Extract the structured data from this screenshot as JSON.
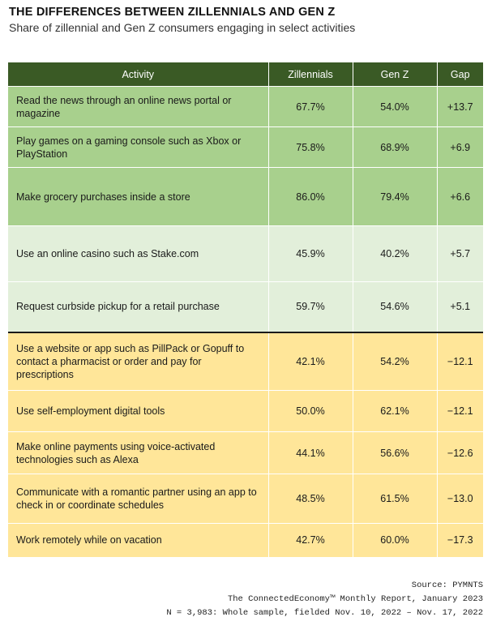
{
  "header": {
    "title": "THE DIFFERENCES BETWEEN ZILLENNIALS AND GEN Z",
    "subtitle": "Share of zillennial and Gen Z consumers engaging in select activities"
  },
  "chart_data": {
    "type": "table",
    "columns": [
      "Activity",
      "Zillennials",
      "Gen Z",
      "Gap"
    ],
    "rows": [
      {
        "activity": "Read the news through an online news portal or magazine",
        "zillennials": "67.7%",
        "genz": "54.0%",
        "gap": "+13.7",
        "group": "dark"
      },
      {
        "activity": "Play games on a gaming console such as Xbox or PlayStation",
        "zillennials": "75.8%",
        "genz": "68.9%",
        "gap": "+6.9",
        "group": "dark"
      },
      {
        "activity": "Make grocery purchases inside a store",
        "zillennials": "86.0%",
        "genz": "79.4%",
        "gap": "+6.6",
        "group": "dark"
      },
      {
        "activity": "Use an online casino such as Stake.com",
        "zillennials": "45.9%",
        "genz": "40.2%",
        "gap": "+5.7",
        "group": "light"
      },
      {
        "activity": "Request curbside pickup for a retail purchase",
        "zillennials": "59.7%",
        "genz": "54.6%",
        "gap": "+5.1",
        "group": "light"
      },
      {
        "activity": "Use a website or app such as PillPack or Gopuff to contact a pharmacist or order and pay for prescriptions",
        "zillennials": "42.1%",
        "genz": "54.2%",
        "gap": "−12.1",
        "group": "yellow"
      },
      {
        "activity": "Use self-employment digital tools",
        "zillennials": "50.0%",
        "genz": "62.1%",
        "gap": "−12.1",
        "group": "yellow"
      },
      {
        "activity": "Make online payments using voice-activated technologies such as Alexa",
        "zillennials": "44.1%",
        "genz": "56.6%",
        "gap": "−12.6",
        "group": "yellow"
      },
      {
        "activity": "Communicate with a romantic partner using an app to check in or coordinate schedules",
        "zillennials": "48.5%",
        "genz": "61.5%",
        "gap": "−13.0",
        "group": "yellow"
      },
      {
        "activity": "Work remotely while on vacation",
        "zillennials": "42.7%",
        "genz": "60.0%",
        "gap": "−17.3",
        "group": "yellow"
      }
    ]
  },
  "footer": {
    "source": "Source: PYMNTS",
    "report": "The ConnectedEconomy™ Monthly Report, January 2023",
    "sample": "N = 3,983: Whole sample, fielded Nov. 10, 2022 – Nov. 17, 2022"
  }
}
